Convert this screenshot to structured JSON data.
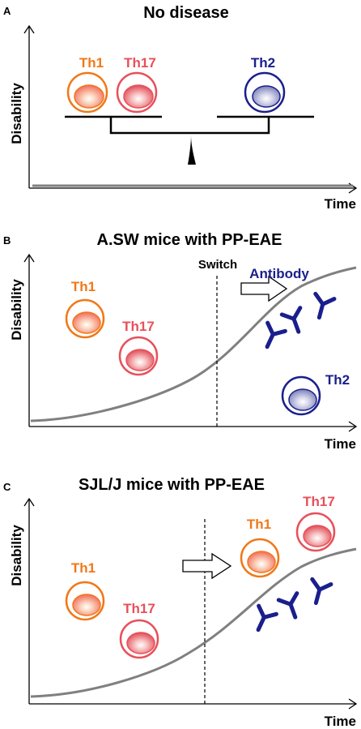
{
  "panels": {
    "a": {
      "letter": "A",
      "title": "No disease",
      "ylabel": "Disability",
      "xlabel": "Time",
      "cells": {
        "th1": "Th1",
        "th17": "Th17",
        "th2": "Th2"
      }
    },
    "b": {
      "letter": "B",
      "title": "A.SW mice with PP-EAE",
      "ylabel": "Disability",
      "xlabel": "Time",
      "switch_label": "Switch",
      "antibody_label": "Antibody",
      "cells": {
        "th1": "Th1",
        "th17": "Th17",
        "th2": "Th2"
      }
    },
    "c": {
      "letter": "C",
      "title": "SJL/J mice with PP-EAE",
      "ylabel": "Disability",
      "xlabel": "Time",
      "cells": {
        "th1_left": "Th1",
        "th17_left": "Th17",
        "th1_right": "Th1",
        "th17_right": "Th17"
      }
    }
  },
  "colors": {
    "th1": "#f07818",
    "th17": "#e8505a",
    "th2": "#1a1f8c",
    "antibody": "#1a1f8c",
    "curve": "#808080"
  },
  "icons": [
    "right-arrow-icon",
    "antibody-icon",
    "cell-icon",
    "balance-scale-icon"
  ]
}
